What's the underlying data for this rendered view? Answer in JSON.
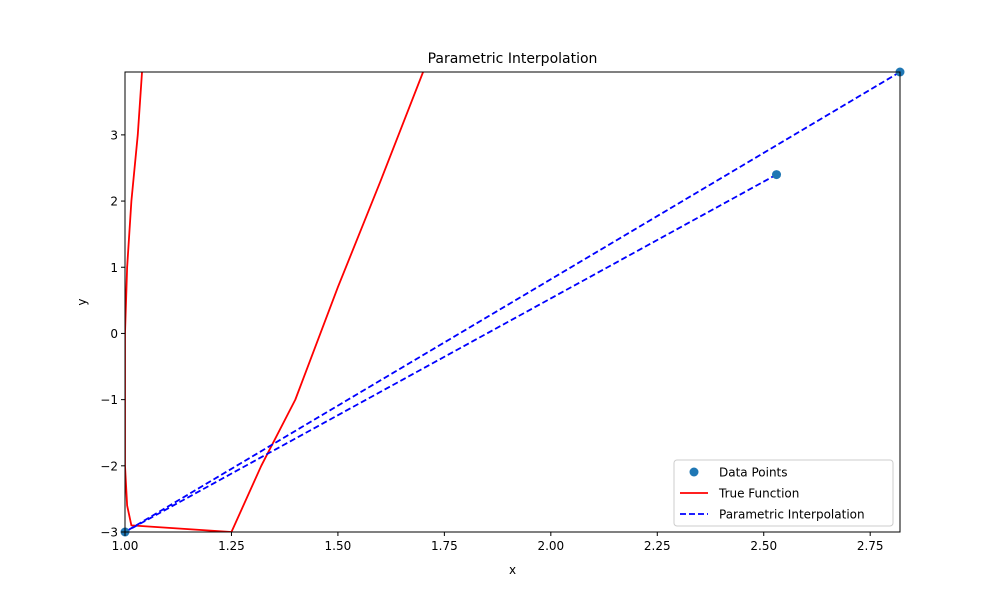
{
  "chart_data": {
    "type": "line",
    "title": "Parametric Interpolation",
    "xlabel": "x",
    "ylabel": "y",
    "xlim": [
      1.0,
      2.82
    ],
    "ylim": [
      -3.0,
      3.95
    ],
    "x_ticks": [
      1.0,
      1.25,
      1.5,
      1.75,
      2.0,
      2.25,
      2.5,
      2.75
    ],
    "x_tick_labels": [
      "1.00",
      "1.25",
      "1.50",
      "1.75",
      "2.00",
      "2.25",
      "2.50",
      "2.75"
    ],
    "y_ticks": [
      -3,
      -2,
      -1,
      0,
      1,
      2,
      3
    ],
    "y_tick_labels": [
      "−3",
      "−2",
      "−1",
      "0",
      "1",
      "2",
      "3"
    ],
    "grid": false,
    "legend_position": "bottom-right",
    "series": [
      {
        "name": "Data Points",
        "kind": "scatter",
        "color": "#1f77b4",
        "x": [
          1.0,
          2.53,
          2.82
        ],
        "y": [
          -3.0,
          2.4,
          3.95
        ]
      },
      {
        "name": "True Function",
        "kind": "line",
        "style": "solid",
        "color": "#ff0000",
        "x": [
          1.04,
          1.03,
          1.015,
          1.005,
          1.0,
          1.0,
          1.0,
          1.005,
          1.015,
          1.25,
          1.32,
          1.4,
          1.5,
          1.6,
          1.7
        ],
        "y": [
          3.95,
          3.0,
          2.0,
          1.0,
          0.0,
          -1.0,
          -2.0,
          -2.6,
          -2.9,
          -3.0,
          -2.0,
          -1.0,
          0.7,
          2.3,
          3.95
        ]
      },
      {
        "name": "Parametric Interpolation",
        "kind": "line",
        "style": "dashed",
        "color": "#0000ff",
        "x": [
          2.53,
          1.0,
          2.82
        ],
        "y": [
          2.4,
          -3.0,
          3.95
        ]
      }
    ]
  }
}
